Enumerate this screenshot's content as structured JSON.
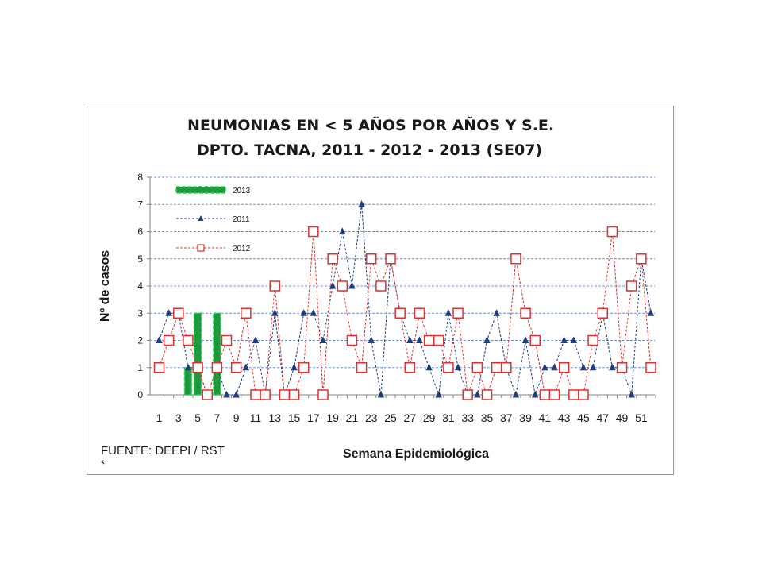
{
  "chart_data": {
    "type": "line",
    "title": "NEUMONIAS EN < 5 AÑOS POR AÑOS Y S.E.",
    "subtitle": "DPTO. TACNA, 2011 - 2012 - 2013 (SE07)",
    "xlabel": "Semana Epidemiológica",
    "ylabel": "Nº de casos",
    "ylim": [
      0,
      8
    ],
    "yticks": [
      0,
      1,
      2,
      3,
      4,
      5,
      6,
      7,
      8
    ],
    "xlim": [
      1,
      52
    ],
    "xtick_labels": [
      1,
      3,
      5,
      7,
      9,
      11,
      13,
      15,
      17,
      19,
      21,
      23,
      25,
      27,
      29,
      31,
      33,
      35,
      37,
      39,
      41,
      43,
      45,
      47,
      49,
      51
    ],
    "grid": true,
    "legend_position": "top-left",
    "source": "FUENTE: DEEPI / RST",
    "footnote": "*",
    "series": [
      {
        "name": "2013",
        "type": "bar",
        "color": "#1e9a3c",
        "x": [
          1,
          2,
          3,
          4,
          5,
          6,
          7
        ],
        "values": [
          0,
          0,
          0,
          1,
          3,
          0,
          3
        ]
      },
      {
        "name": "2011",
        "type": "line",
        "marker": "triangle",
        "color": "#1f3d7a",
        "x": [
          1,
          2,
          3,
          4,
          5,
          6,
          7,
          8,
          9,
          10,
          11,
          12,
          13,
          14,
          15,
          16,
          17,
          18,
          19,
          20,
          21,
          22,
          23,
          24,
          25,
          26,
          27,
          28,
          29,
          30,
          31,
          32,
          33,
          34,
          35,
          36,
          37,
          38,
          39,
          40,
          41,
          42,
          43,
          44,
          45,
          46,
          47,
          48,
          49,
          50,
          51,
          52
        ],
        "values": [
          2,
          3,
          3,
          1,
          1,
          0,
          1,
          0,
          0,
          1,
          2,
          0,
          3,
          0,
          1,
          3,
          3,
          2,
          4,
          6,
          4,
          7,
          2,
          0,
          5,
          3,
          2,
          2,
          1,
          0,
          3,
          1,
          0,
          0,
          2,
          3,
          1,
          0,
          2,
          0,
          1,
          1,
          2,
          2,
          1,
          1,
          3,
          1,
          1,
          0,
          5,
          3
        ]
      },
      {
        "name": "2012",
        "type": "line",
        "marker": "square",
        "color": "#e0302f",
        "x": [
          1,
          2,
          3,
          4,
          5,
          6,
          7,
          8,
          9,
          10,
          11,
          12,
          13,
          14,
          15,
          16,
          17,
          18,
          19,
          20,
          21,
          22,
          23,
          24,
          25,
          26,
          27,
          28,
          29,
          30,
          31,
          32,
          33,
          34,
          35,
          36,
          37,
          38,
          39,
          40,
          41,
          42,
          43,
          44,
          45,
          46,
          47,
          48,
          49,
          50,
          51,
          52
        ],
        "values": [
          1,
          2,
          3,
          2,
          1,
          0,
          1,
          2,
          1,
          3,
          0,
          0,
          4,
          0,
          0,
          1,
          6,
          0,
          5,
          4,
          2,
          1,
          5,
          4,
          5,
          3,
          1,
          3,
          2,
          2,
          1,
          3,
          0,
          1,
          0,
          1,
          1,
          5,
          3,
          2,
          0,
          0,
          1,
          0,
          0,
          2,
          3,
          6,
          1,
          4,
          5,
          1
        ]
      }
    ]
  }
}
